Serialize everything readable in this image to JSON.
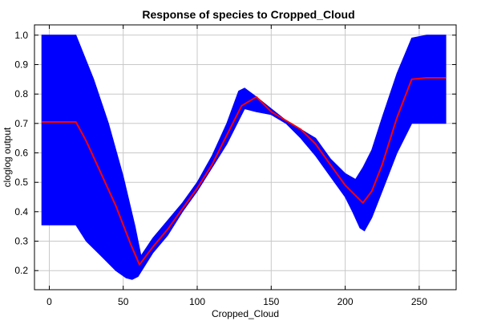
{
  "chart_data": {
    "type": "line",
    "title": "Response of species to Cropped_Cloud",
    "xlabel": "Cropped_Cloud",
    "ylabel": "cloglog output",
    "xlim": [
      -10,
      275
    ],
    "ylim": [
      0.135,
      1.035
    ],
    "xticks": [
      0,
      50,
      100,
      150,
      200,
      250
    ],
    "yticks": [
      0.2,
      0.3,
      0.4,
      0.5,
      0.6,
      0.7,
      0.8,
      0.9,
      1.0
    ],
    "xtick_labels": [
      "0",
      "50",
      "100",
      "150",
      "200",
      "250"
    ],
    "ytick_labels": [
      "0.2",
      "0.3",
      "0.4",
      "0.5",
      "0.6",
      "0.7",
      "0.8",
      "0.9",
      "1.0"
    ],
    "grid": true,
    "colors": {
      "band": "#0000ff",
      "line": "#ff0000"
    },
    "series": [
      {
        "role": "mean",
        "x": [
          -5,
          5,
          18,
          25,
          35,
          45,
          55,
          61,
          70,
          80,
          90,
          100,
          110,
          120,
          130,
          140,
          150,
          160,
          170,
          180,
          190,
          200,
          207,
          212,
          218,
          225,
          235,
          245,
          255,
          268
        ],
        "y": [
          0.705,
          0.705,
          0.705,
          0.64,
          0.53,
          0.42,
          0.29,
          0.22,
          0.28,
          0.34,
          0.41,
          0.48,
          0.56,
          0.66,
          0.76,
          0.79,
          0.74,
          0.71,
          0.68,
          0.63,
          0.56,
          0.49,
          0.455,
          0.43,
          0.47,
          0.56,
          0.72,
          0.85,
          0.855,
          0.855
        ]
      },
      {
        "role": "upper",
        "x": [
          -5,
          5,
          18,
          30,
          40,
          50,
          58,
          62,
          70,
          80,
          90,
          100,
          110,
          120,
          128,
          132,
          140,
          150,
          160,
          170,
          180,
          190,
          200,
          207,
          212,
          218,
          225,
          235,
          245,
          255,
          268
        ],
        "y": [
          1.0,
          1.0,
          1.0,
          0.85,
          0.7,
          0.52,
          0.35,
          0.25,
          0.31,
          0.37,
          0.43,
          0.5,
          0.59,
          0.7,
          0.81,
          0.82,
          0.79,
          0.75,
          0.71,
          0.68,
          0.65,
          0.58,
          0.53,
          0.51,
          0.55,
          0.61,
          0.72,
          0.87,
          0.99,
          1.0,
          1.0
        ]
      },
      {
        "role": "lower",
        "x": [
          -5,
          5,
          18,
          25,
          35,
          45,
          52,
          56,
          60,
          65,
          70,
          80,
          90,
          100,
          110,
          120,
          128,
          132,
          140,
          150,
          160,
          170,
          180,
          190,
          200,
          205,
          210,
          213,
          218,
          225,
          235,
          245,
          255,
          268
        ],
        "y": [
          0.355,
          0.355,
          0.355,
          0.3,
          0.25,
          0.2,
          0.175,
          0.17,
          0.18,
          0.22,
          0.26,
          0.32,
          0.4,
          0.47,
          0.55,
          0.63,
          0.71,
          0.75,
          0.74,
          0.73,
          0.7,
          0.65,
          0.59,
          0.52,
          0.45,
          0.4,
          0.345,
          0.335,
          0.38,
          0.47,
          0.6,
          0.7,
          0.7,
          0.7
        ]
      }
    ]
  }
}
